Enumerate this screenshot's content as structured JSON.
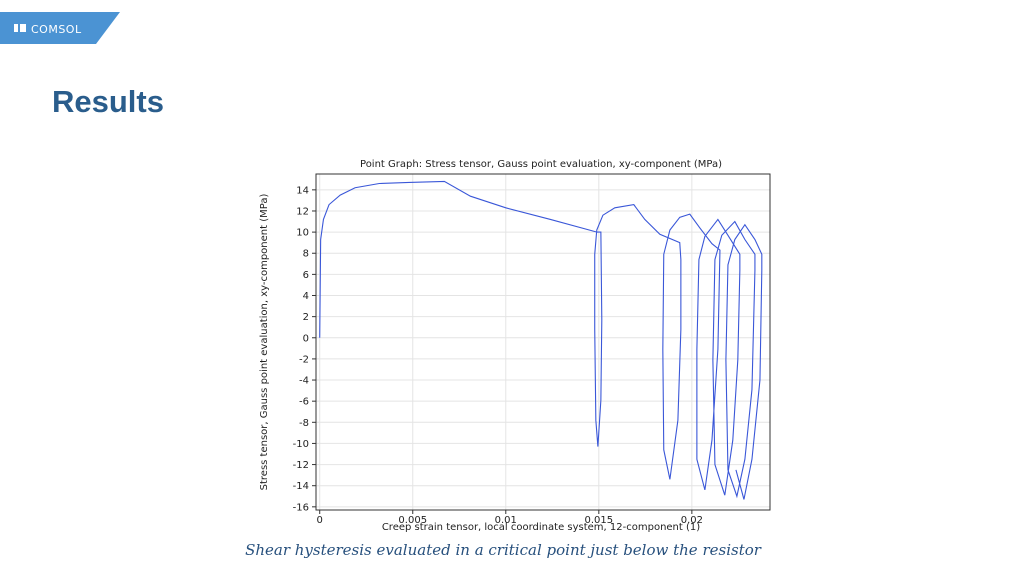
{
  "header": {
    "logo": "COMSOL",
    "title": "Results"
  },
  "caption": "Shear hysteresis evaluated in a critical point just below the resistor",
  "chart_data": {
    "type": "line",
    "title": "Point Graph: Stress tensor, Gauss point evaluation, xy-component (MPa)",
    "x_label": "Creep strain tensor, local coordinate system, 12-component (1)",
    "y_label": "Stress tensor, Gauss point evaluation, xy-component (MPa)",
    "color": "#3a57d8",
    "grid": true,
    "xlim": [
      -0.0002,
      0.0242
    ],
    "xticks": [
      0,
      0.005,
      0.01,
      0.015,
      0.02
    ],
    "ylim": [
      -16.3,
      15.5
    ],
    "yticks": [
      -16,
      -14,
      -12,
      -10,
      -8,
      -6,
      -4,
      -2,
      0,
      2,
      4,
      6,
      8,
      10,
      12,
      14
    ],
    "x": [
      0,
      5e-05,
      0.0002,
      0.0005,
      0.0011,
      0.0019,
      0.0032,
      0.0048,
      0.0067,
      0.0081,
      0.01,
      0.0124,
      0.0149,
      0.01511,
      0.01516,
      0.01511,
      0.01495,
      0.01484,
      0.01478,
      0.01478,
      0.01489,
      0.01522,
      0.01586,
      0.01688,
      0.01747,
      0.01828,
      0.01935,
      0.01941,
      0.01941,
      0.01925,
      0.01882,
      0.01849,
      0.01844,
      0.01849,
      0.01882,
      0.01935,
      0.01989,
      0.02043,
      0.02108,
      0.02151,
      0.0214,
      0.02108,
      0.0207,
      0.02027,
      0.02027,
      0.02038,
      0.0207,
      0.0214,
      0.02194,
      0.02258,
      0.02258,
      0.02247,
      0.0222,
      0.02177,
      0.02124,
      0.02113,
      0.02124,
      0.02161,
      0.02231,
      0.02285,
      0.02339,
      0.02339,
      0.02323,
      0.02285,
      0.02242,
      0.02194,
      0.02183,
      0.02194,
      0.02231,
      0.02285,
      0.02339,
      0.02376,
      0.02376,
      0.02366,
      0.02323,
      0.0228,
      0.02237
    ],
    "values": [
      0,
      9.3,
      11.2,
      12.6,
      13.5,
      14.2,
      14.6,
      14.7,
      14.8,
      13.4,
      12.3,
      11.2,
      10.0,
      10.0,
      1.7,
      -5.9,
      -10.3,
      -7.8,
      0.8,
      7.9,
      10.2,
      11.6,
      12.3,
      12.6,
      11.2,
      9.8,
      9.0,
      7.4,
      0.8,
      -7.8,
      -13.4,
      -10.6,
      -1.1,
      7.9,
      10.2,
      11.4,
      11.7,
      10.4,
      8.9,
      8.3,
      -1.1,
      -9.7,
      -14.4,
      -11.5,
      -1.1,
      7.4,
      9.6,
      11.2,
      9.7,
      7.9,
      6.4,
      -2.1,
      -9.7,
      -14.9,
      -12.0,
      -2.1,
      7.4,
      9.7,
      11.0,
      9.3,
      7.9,
      6.4,
      -4.9,
      -11.5,
      -15.0,
      -12.5,
      -2.1,
      6.9,
      9.3,
      10.7,
      9.3,
      7.9,
      6.4,
      -4.0,
      -11.5,
      -15.3,
      -12.5
    ]
  }
}
